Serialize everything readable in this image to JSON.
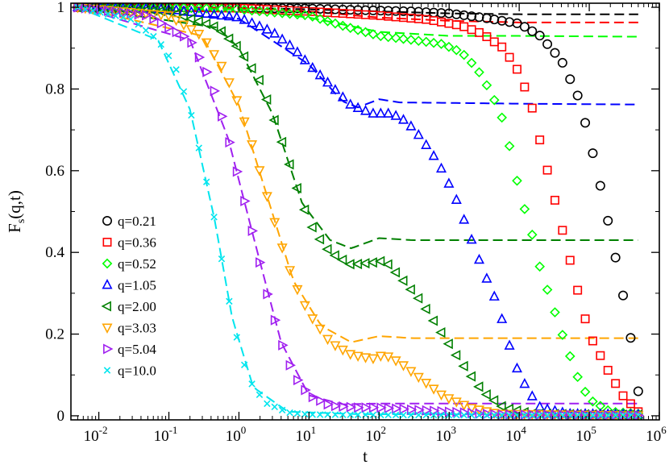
{
  "chart_data": {
    "type": "scatter",
    "title": "",
    "xlabel": "t",
    "ylabel": "F_s(q,t)",
    "ylabel_main": "F",
    "ylabel_sub": "s",
    "ylabel_rest": "(q,t)",
    "xscale": "log",
    "xlim": [
      0.004,
      1000000
    ],
    "ylim": [
      -0.01,
      1.01
    ],
    "x_ticks": [
      {
        "value": 0.01,
        "base": "10",
        "exp": "-2"
      },
      {
        "value": 0.1,
        "base": "10",
        "exp": "-1"
      },
      {
        "value": 1,
        "base": "10",
        "exp": "0"
      },
      {
        "value": 10,
        "base": "10",
        "exp": "1"
      },
      {
        "value": 100,
        "base": "10",
        "exp": "2"
      },
      {
        "value": 1000,
        "base": "10",
        "exp": "3"
      },
      {
        "value": 10000,
        "base": "10",
        "exp": "4"
      },
      {
        "value": 100000,
        "base": "10",
        "exp": "5"
      },
      {
        "value": 1000000,
        "base": "10",
        "exp": "6"
      }
    ],
    "y_ticks": [
      {
        "value": 0,
        "label": "0"
      },
      {
        "value": 0.2,
        "label": "0.2"
      },
      {
        "value": 0.4,
        "label": "0.4"
      },
      {
        "value": 0.6,
        "label": "0.6"
      },
      {
        "value": 0.8,
        "label": "0.8"
      },
      {
        "value": 1,
        "label": "1"
      }
    ],
    "legend_position": "left-center",
    "series": [
      {
        "name": "q=0.21",
        "marker": "circle",
        "color": "#000000",
        "points": [
          [
            0.005,
            1.0
          ],
          [
            0.1,
            1.0
          ],
          [
            1,
            0.999
          ],
          [
            10,
            0.997
          ],
          [
            100,
            0.992
          ],
          [
            300,
            0.99
          ],
          [
            1000,
            0.985
          ],
          [
            3000,
            0.975
          ],
          [
            10000,
            0.96
          ],
          [
            20000,
            0.93
          ],
          [
            40000,
            0.87
          ],
          [
            70000,
            0.78
          ],
          [
            100000,
            0.68
          ],
          [
            150000,
            0.55
          ],
          [
            200000,
            0.45
          ],
          [
            300000,
            0.3
          ],
          [
            400000,
            0.18
          ],
          [
            500000,
            0.06
          ]
        ],
        "dashed": [
          [
            0.005,
            1.0
          ],
          [
            1,
            0.999
          ],
          [
            10,
            0.995
          ],
          [
            100,
            0.99
          ],
          [
            1000,
            0.985
          ],
          [
            10000,
            0.983
          ],
          [
            100000,
            0.983
          ],
          [
            500000,
            0.983
          ]
        ]
      },
      {
        "name": "q=0.36",
        "marker": "square",
        "color": "#ff0000",
        "points": [
          [
            0.005,
            1.0
          ],
          [
            0.1,
            1.0
          ],
          [
            1,
            0.998
          ],
          [
            10,
            0.99
          ],
          [
            100,
            0.98
          ],
          [
            500,
            0.97
          ],
          [
            1500,
            0.955
          ],
          [
            3000,
            0.935
          ],
          [
            6000,
            0.9
          ],
          [
            10000,
            0.84
          ],
          [
            15000,
            0.76
          ],
          [
            20000,
            0.67
          ],
          [
            30000,
            0.55
          ],
          [
            45000,
            0.43
          ],
          [
            70000,
            0.3
          ],
          [
            100000,
            0.2
          ],
          [
            200000,
            0.1
          ],
          [
            300000,
            0.05
          ],
          [
            500000,
            0.01
          ]
        ],
        "dashed": [
          [
            0.005,
            1.0
          ],
          [
            1,
            0.998
          ],
          [
            10,
            0.99
          ],
          [
            100,
            0.975
          ],
          [
            1000,
            0.967
          ],
          [
            10000,
            0.963
          ],
          [
            500000,
            0.963
          ]
        ]
      },
      {
        "name": "q=0.52",
        "marker": "diamond",
        "color": "#00ff00",
        "points": [
          [
            0.005,
            1.0
          ],
          [
            0.1,
            1.0
          ],
          [
            1,
            0.995
          ],
          [
            10,
            0.98
          ],
          [
            30,
            0.955
          ],
          [
            100,
            0.93
          ],
          [
            300,
            0.92
          ],
          [
            800,
            0.91
          ],
          [
            1500,
            0.89
          ],
          [
            2500,
            0.85
          ],
          [
            4000,
            0.79
          ],
          [
            6000,
            0.72
          ],
          [
            8000,
            0.63
          ],
          [
            10000,
            0.55
          ],
          [
            15000,
            0.45
          ],
          [
            20000,
            0.36
          ],
          [
            30000,
            0.27
          ],
          [
            45000,
            0.18
          ],
          [
            70000,
            0.09
          ],
          [
            100000,
            0.04
          ],
          [
            200000,
            0.01
          ],
          [
            500000,
            0.005
          ]
        ],
        "dashed": [
          [
            0.005,
            1.0
          ],
          [
            1,
            0.995
          ],
          [
            10,
            0.975
          ],
          [
            100,
            0.94
          ],
          [
            1000,
            0.93
          ],
          [
            10000,
            0.93
          ],
          [
            500000,
            0.928
          ]
        ]
      },
      {
        "name": "q=1.05",
        "marker": "triangle-up",
        "color": "#0000ff",
        "points": [
          [
            0.005,
            1.0
          ],
          [
            0.1,
            0.995
          ],
          [
            1,
            0.975
          ],
          [
            3,
            0.94
          ],
          [
            6,
            0.9
          ],
          [
            10,
            0.86
          ],
          [
            20,
            0.81
          ],
          [
            40,
            0.76
          ],
          [
            80,
            0.74
          ],
          [
            150,
            0.74
          ],
          [
            250,
            0.72
          ],
          [
            400,
            0.68
          ],
          [
            700,
            0.62
          ],
          [
            1200,
            0.54
          ],
          [
            2000,
            0.44
          ],
          [
            3000,
            0.36
          ],
          [
            5000,
            0.27
          ],
          [
            7000,
            0.18
          ],
          [
            10000,
            0.1
          ],
          [
            15000,
            0.05
          ],
          [
            20000,
            0.02
          ],
          [
            50000,
            0.005
          ],
          [
            500000,
            0.003
          ]
        ],
        "dashed": [
          [
            0.005,
            1.0
          ],
          [
            1,
            0.972
          ],
          [
            10,
            0.86
          ],
          [
            30,
            0.77
          ],
          [
            50,
            0.755
          ],
          [
            100,
            0.775
          ],
          [
            200,
            0.767
          ],
          [
            1000,
            0.766
          ],
          [
            10000,
            0.764
          ],
          [
            500000,
            0.762
          ]
        ]
      },
      {
        "name": "q=2.00",
        "marker": "triangle-left",
        "color": "#008000",
        "points": [
          [
            0.005,
            1.0
          ],
          [
            0.1,
            0.99
          ],
          [
            0.5,
            0.95
          ],
          [
            1,
            0.9
          ],
          [
            2,
            0.82
          ],
          [
            3,
            0.74
          ],
          [
            5,
            0.63
          ],
          [
            8,
            0.52
          ],
          [
            12,
            0.45
          ],
          [
            20,
            0.4
          ],
          [
            40,
            0.37
          ],
          [
            80,
            0.375
          ],
          [
            120,
            0.38
          ],
          [
            200,
            0.34
          ],
          [
            400,
            0.28
          ],
          [
            800,
            0.2
          ],
          [
            1500,
            0.13
          ],
          [
            3000,
            0.06
          ],
          [
            6000,
            0.02
          ],
          [
            15000,
            0.005
          ],
          [
            500000,
            0.002
          ]
        ],
        "dashed": [
          [
            0.005,
            1.0
          ],
          [
            0.5,
            0.95
          ],
          [
            1,
            0.9
          ],
          [
            3,
            0.74
          ],
          [
            8,
            0.52
          ],
          [
            20,
            0.43
          ],
          [
            40,
            0.41
          ],
          [
            100,
            0.435
          ],
          [
            300,
            0.43
          ],
          [
            1000,
            0.43
          ],
          [
            500000,
            0.43
          ]
        ]
      },
      {
        "name": "q=3.03",
        "marker": "triangle-down",
        "color": "#ffa500",
        "points": [
          [
            0.005,
            1.0
          ],
          [
            0.1,
            0.98
          ],
          [
            0.3,
            0.93
          ],
          [
            0.6,
            0.85
          ],
          [
            1,
            0.76
          ],
          [
            1.5,
            0.67
          ],
          [
            2.5,
            0.54
          ],
          [
            4,
            0.42
          ],
          [
            6,
            0.33
          ],
          [
            10,
            0.25
          ],
          [
            20,
            0.18
          ],
          [
            40,
            0.15
          ],
          [
            80,
            0.14
          ],
          [
            120,
            0.15
          ],
          [
            200,
            0.13
          ],
          [
            400,
            0.09
          ],
          [
            800,
            0.05
          ],
          [
            2000,
            0.02
          ],
          [
            5000,
            0.005
          ],
          [
            500000,
            0.001
          ]
        ],
        "dashed": [
          [
            0.005,
            1.0
          ],
          [
            0.3,
            0.93
          ],
          [
            1,
            0.76
          ],
          [
            2.5,
            0.54
          ],
          [
            6,
            0.33
          ],
          [
            15,
            0.22
          ],
          [
            40,
            0.18
          ],
          [
            100,
            0.195
          ],
          [
            300,
            0.19
          ],
          [
            1000,
            0.19
          ],
          [
            500000,
            0.19
          ]
        ]
      },
      {
        "name": "q=5.04",
        "marker": "triangle-right",
        "color": "#a020f0",
        "points": [
          [
            0.005,
            1.0
          ],
          [
            0.05,
            0.98
          ],
          [
            0.2,
            0.92
          ],
          [
            0.4,
            0.82
          ],
          [
            0.7,
            0.68
          ],
          [
            1.1,
            0.55
          ],
          [
            1.6,
            0.44
          ],
          [
            2.5,
            0.3
          ],
          [
            4,
            0.18
          ],
          [
            6,
            0.1
          ],
          [
            10,
            0.05
          ],
          [
            20,
            0.025
          ],
          [
            50,
            0.02
          ],
          [
            100,
            0.02
          ],
          [
            300,
            0.015
          ],
          [
            1000,
            0.01
          ],
          [
            5000,
            0.003
          ],
          [
            500000,
            0.001
          ]
        ],
        "dashed": [
          [
            0.005,
            1.0
          ],
          [
            0.2,
            0.92
          ],
          [
            0.7,
            0.68
          ],
          [
            1.6,
            0.44
          ],
          [
            4,
            0.18
          ],
          [
            10,
            0.05
          ],
          [
            30,
            0.028
          ],
          [
            100,
            0.03
          ],
          [
            1000,
            0.03
          ],
          [
            500000,
            0.03
          ]
        ]
      },
      {
        "name": "q=10.0",
        "marker": "cross",
        "color": "#00e5ee",
        "points": [
          [
            0.005,
            1.0
          ],
          [
            0.03,
            0.97
          ],
          [
            0.07,
            0.92
          ],
          [
            0.12,
            0.86
          ],
          [
            0.2,
            0.75
          ],
          [
            0.3,
            0.62
          ],
          [
            0.45,
            0.48
          ],
          [
            0.6,
            0.36
          ],
          [
            0.8,
            0.24
          ],
          [
            1.1,
            0.14
          ],
          [
            1.6,
            0.07
          ],
          [
            2.5,
            0.03
          ],
          [
            5,
            0.008
          ],
          [
            10,
            0.003
          ],
          [
            100,
            0.002
          ],
          [
            10000,
            0.001
          ],
          [
            500000,
            0.001
          ]
        ],
        "dashed": [
          [
            0.005,
            1.0
          ],
          [
            0.07,
            0.92
          ],
          [
            0.2,
            0.75
          ],
          [
            0.45,
            0.48
          ],
          [
            0.8,
            0.24
          ],
          [
            1.6,
            0.07
          ],
          [
            5,
            0.01
          ],
          [
            50,
            0.004
          ],
          [
            500000,
            0.003
          ]
        ]
      }
    ]
  }
}
